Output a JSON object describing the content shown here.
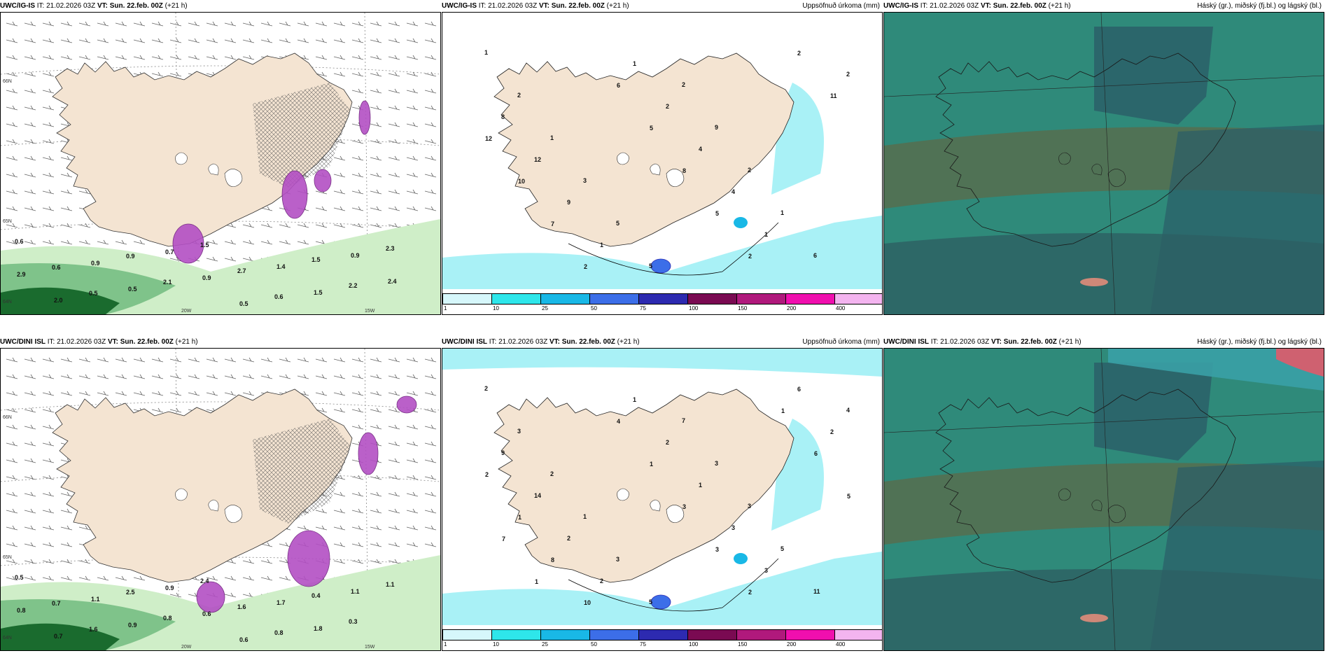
{
  "panels": [
    {
      "model": "UWC/IG-IS",
      "it_label": "IT:",
      "it_value": "21.02.2026 03Z",
      "vt_label": "VT:",
      "vt_value": "Sun. 22.feb. 00Z",
      "lead": "(+21 h)",
      "right_title": "",
      "labels": [
        "0.6",
        "0.6",
        "0.5",
        "0.9",
        "2.1",
        "1.5",
        "2.7",
        "0.6",
        "1.5",
        "2.2",
        "2.3",
        "2.9",
        "2.0",
        "0.9",
        "0.5",
        "0.7",
        "0.9",
        "0.5",
        "1.4",
        "1.5",
        "0.9",
        "2.4"
      ],
      "axes": [
        "66N",
        "65N",
        "64N",
        "20W",
        "15W"
      ]
    },
    {
      "model": "UWC/IG-IS",
      "it_label": "IT:",
      "it_value": "21.02.2026 03Z",
      "vt_label": "VT:",
      "vt_value": "Sun. 22.feb. 00Z",
      "lead": "(+21 h)",
      "right_title": "Uppsöfnuð úrkoma (mm)",
      "labels": [
        "1",
        "2",
        "1",
        "3",
        "5",
        "5",
        "2",
        "9",
        "2",
        "1",
        "6",
        "2",
        "8",
        "12",
        "9",
        "1",
        "1",
        "2",
        "4",
        "4",
        "1",
        "2",
        "11",
        "12",
        "10",
        "7",
        "2",
        "6",
        "5",
        "8",
        "5",
        "2"
      ]
    },
    {
      "model": "UWC/IG-IS",
      "it_label": "IT:",
      "it_value": "21.02.2026 03Z",
      "vt_label": "VT:",
      "vt_value": "Sun. 22.feb. 00Z",
      "lead": "(+21 h)",
      "right_title": "Háský (gr.), miðský (fj.bl.) og lágský (bl.)"
    },
    {
      "model": "UWC/DINI ISL",
      "it_label": "IT:",
      "it_value": "21.02.2026 03Z",
      "vt_label": "VT:",
      "vt_value": "Sun. 22.feb. 00Z",
      "lead": "(+21 h)",
      "right_title": "",
      "labels": [
        "0.5",
        "0.7",
        "1.6",
        "2.5",
        "0.8",
        "2.4",
        "1.6",
        "0.8",
        "0.4",
        "0.3",
        "1.1",
        "0.8",
        "0.7",
        "1.1",
        "0.9",
        "0.9",
        "0.6",
        "0.6",
        "1.7",
        "1.8",
        "1.1"
      ],
      "axes": [
        "66N",
        "65N",
        "64N",
        "20W",
        "15W"
      ]
    },
    {
      "model": "UWC/DINI ISL",
      "it_label": "IT:",
      "it_value": "21.02.2026 03Z",
      "vt_label": "VT:",
      "vt_value": "Sun. 22.feb. 00Z",
      "lead": "(+21 h)",
      "right_title": "Uppsöfnuð úrkoma (mm)",
      "labels": [
        "2",
        "3",
        "2",
        "1",
        "3",
        "5",
        "7",
        "3",
        "3",
        "5",
        "11",
        "4",
        "9",
        "14",
        "2",
        "2",
        "1",
        "2",
        "1",
        "3",
        "3",
        "6",
        "2",
        "2",
        "1",
        "8",
        "10",
        "4",
        "1",
        "3",
        "3",
        "2",
        "1",
        "6",
        "5",
        "7",
        "1"
      ]
    },
    {
      "model": "UWC/DINI ISL",
      "it_label": "IT:",
      "it_value": "21.02.2026 03Z",
      "vt_label": "VT:",
      "vt_value": "Sun. 22.feb. 00Z",
      "lead": "(+21 h)",
      "right_title": "Háský (gr.), miðský (fj.bl.) og lágský (bl.)"
    }
  ],
  "colorbar": {
    "colors": [
      "#d6f7fb",
      "#2ee6ea",
      "#19b8e6",
      "#3c6ee8",
      "#2d2ab0",
      "#7a0a52",
      "#b0197c",
      "#f00fae",
      "#f3b4ef"
    ],
    "ticks": [
      "1",
      "10",
      "25",
      "50",
      "75",
      "100",
      "150",
      "200",
      "400"
    ]
  },
  "map_colors": {
    "land": "#f4e4d2",
    "sea": "#ffffff",
    "precip_light": "#cfeec8",
    "precip_dark": "#1a6b2e",
    "snow": "#b34fc4",
    "rain_acc": "#a9f1f6",
    "cloud_base": "#2f8a7a",
    "cloud_dark": "#2a5c68",
    "cloud_mid": "#5c6a4a"
  }
}
